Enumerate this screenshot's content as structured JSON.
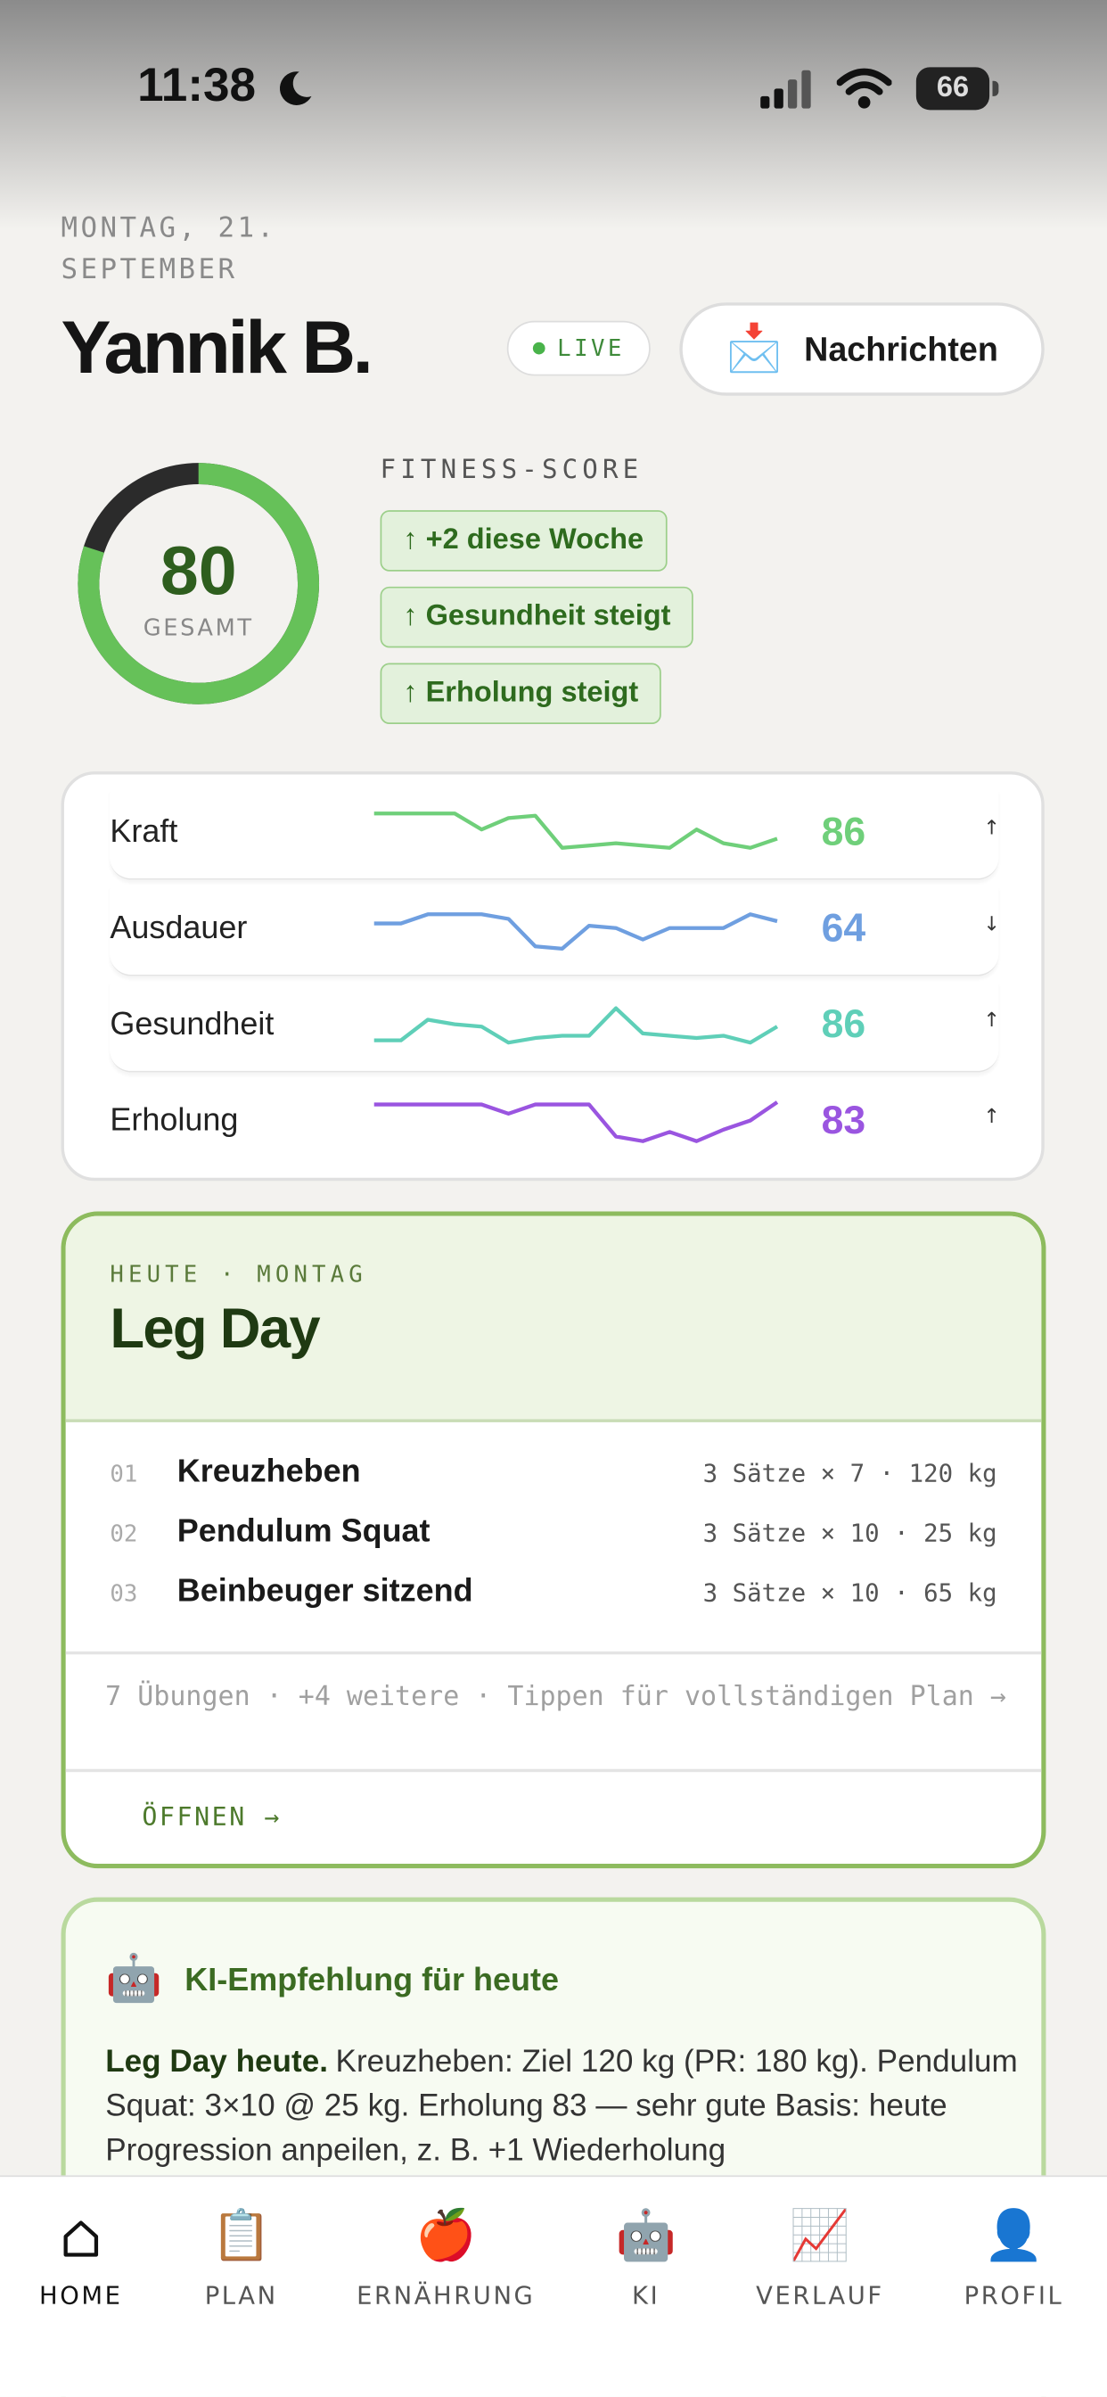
{
  "status_bar": {
    "time": "11:38",
    "battery": "66"
  },
  "header": {
    "date_line1": "MONTAG, 21.",
    "date_line2": "SEPTEMBER",
    "name": "Yannik B.",
    "live": "LIVE",
    "messages_icon": "📩",
    "messages_button": "Nachrichten"
  },
  "score": {
    "value": 80,
    "range": [
      0,
      100
    ],
    "label": "GESAMT",
    "title": "FITNESS-SCORE",
    "badges": [
      "↑ +2 diese Woche",
      "↑ Gesundheit steigt",
      "↑ Erholung steigt"
    ]
  },
  "metrics": {
    "trend_range": [
      0,
      100
    ],
    "rows": [
      {
        "label": "Kraft",
        "value": 86,
        "trend_arrow": "↑",
        "color": "#6fcf7a",
        "trend": [
          95,
          95,
          95,
          95,
          60,
          85,
          90,
          20,
          25,
          30,
          25,
          20,
          60,
          30,
          20,
          40
        ]
      },
      {
        "label": "Ausdauer",
        "value": 64,
        "trend_arrow": "↓",
        "color": "#6f9fe0",
        "trend": [
          65,
          65,
          85,
          85,
          85,
          75,
          15,
          10,
          60,
          55,
          30,
          55,
          55,
          55,
          85,
          70
        ]
      },
      {
        "label": "Gesundheit",
        "value": 86,
        "trend_arrow": "↑",
        "color": "#5fcfb8",
        "trend": [
          20,
          20,
          65,
          55,
          50,
          15,
          25,
          30,
          30,
          90,
          35,
          30,
          25,
          30,
          15,
          50
        ]
      },
      {
        "label": "Erholung",
        "value": 83,
        "trend_arrow": "↑",
        "color": "#9a55e0",
        "trend": [
          90,
          90,
          90,
          90,
          90,
          70,
          90,
          90,
          90,
          20,
          10,
          30,
          10,
          35,
          55,
          95
        ]
      }
    ]
  },
  "workout": {
    "eyebrow": "HEUTE · MONTAG",
    "title": "Leg Day",
    "exercises": [
      {
        "number": "01",
        "name": "Kreuzheben",
        "detail": "3 Sätze × 7 · 120 kg"
      },
      {
        "number": "02",
        "name": "Pendulum Squat",
        "detail": "3 Sätze × 10 · 25 kg"
      },
      {
        "number": "03",
        "name": "Beinbeuger sitzend",
        "detail": "3 Sätze × 10 · 65 kg"
      }
    ],
    "footer": "7 Übungen · +4 weitere · Tippen für vollständigen Plan →",
    "open_button": "ÖFFNEN →"
  },
  "recommendation": {
    "icon": "🤖",
    "title": "KI-Empfehlung für heute",
    "lead": "Leg Day heute.",
    "text": "Kreuzheben: Ziel 120 kg (PR: 180 kg). Pendulum Squat: 3×10 @ 25 kg. Erholung 83 — sehr gute Basis: heute Progression anpeilen, z. B. +1 Wiederholung"
  },
  "nav": [
    {
      "label": "HOME"
    },
    {
      "icon": "📋",
      "label": "PLAN"
    },
    {
      "icon": "🍎",
      "label": "ERNÄHRUNG"
    },
    {
      "icon": "🤖",
      "label": "KI"
    },
    {
      "icon": "📈",
      "label": "VERLAUF"
    },
    {
      "icon": "👤",
      "label": "PROFIL"
    }
  ]
}
